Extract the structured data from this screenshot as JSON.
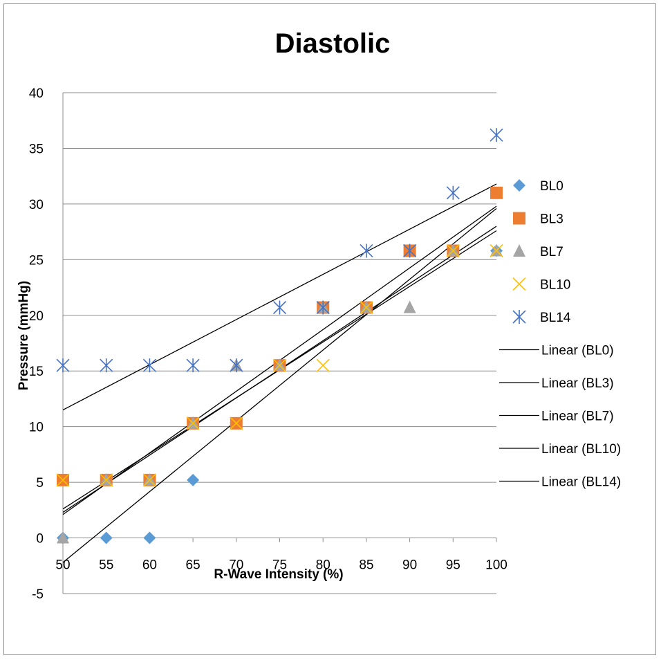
{
  "chart_data": {
    "type": "scatter",
    "title": "Diastolic",
    "xlabel": "R-Wave Intensity (%)",
    "ylabel": "Pressure (mmHg)",
    "xlim": [
      50,
      100
    ],
    "ylim": [
      -5,
      40
    ],
    "x_ticks": [
      "50",
      "55",
      "60",
      "65",
      "70",
      "75",
      "80",
      "85",
      "90",
      "95",
      "100"
    ],
    "y_ticks": [
      "-5",
      "0",
      "5",
      "10",
      "15",
      "20",
      "25",
      "30",
      "35",
      "40"
    ],
    "grid": "horizontal",
    "legend_position": "right",
    "series": [
      {
        "name": "BL0",
        "marker": "diamond",
        "color": "#5b9bd5",
        "points": [
          [
            50,
            0
          ],
          [
            55,
            0
          ],
          [
            60,
            0
          ],
          [
            65,
            5.2
          ],
          [
            70,
            10.3
          ],
          [
            75,
            15.5
          ],
          [
            80,
            20.7
          ],
          [
            85,
            20.7
          ],
          [
            90,
            25.8
          ],
          [
            95,
            25.8
          ],
          [
            100,
            25.8
          ]
        ]
      },
      {
        "name": "BL3",
        "marker": "square",
        "color": "#ed7d31",
        "points": [
          [
            50,
            5.2
          ],
          [
            55,
            5.2
          ],
          [
            60,
            5.2
          ],
          [
            65,
            10.3
          ],
          [
            70,
            10.3
          ],
          [
            75,
            15.5
          ],
          [
            80,
            20.7
          ],
          [
            85,
            20.7
          ],
          [
            90,
            25.8
          ],
          [
            95,
            25.8
          ],
          [
            100,
            31
          ]
        ]
      },
      {
        "name": "BL7",
        "marker": "triangle",
        "color": "#a5a5a5",
        "points": [
          [
            50,
            0
          ],
          [
            55,
            5.2
          ],
          [
            60,
            5.2
          ],
          [
            65,
            10.3
          ],
          [
            70,
            15.5
          ],
          [
            75,
            15.5
          ],
          [
            80,
            20.7
          ],
          [
            85,
            20.7
          ],
          [
            90,
            20.7
          ],
          [
            95,
            25.8
          ],
          [
            100,
            25.8
          ]
        ]
      },
      {
        "name": "BL10",
        "marker": "x",
        "color": "#ffc000",
        "points": [
          [
            50,
            5.2
          ],
          [
            55,
            5.2
          ],
          [
            60,
            5.2
          ],
          [
            65,
            10.3
          ],
          [
            70,
            10.3
          ],
          [
            75,
            15.5
          ],
          [
            80,
            15.5
          ],
          [
            85,
            20.7
          ],
          [
            90,
            25.8
          ],
          [
            95,
            25.8
          ],
          [
            100,
            25.8
          ]
        ]
      },
      {
        "name": "BL14",
        "marker": "star",
        "color": "#4472c4",
        "points": [
          [
            50,
            15.5
          ],
          [
            55,
            15.5
          ],
          [
            60,
            15.5
          ],
          [
            65,
            15.5
          ],
          [
            70,
            15.5
          ],
          [
            75,
            20.7
          ],
          [
            80,
            20.7
          ],
          [
            85,
            25.8
          ],
          [
            90,
            25.8
          ],
          [
            95,
            31
          ],
          [
            100,
            36.2
          ]
        ]
      }
    ],
    "trendlines": [
      {
        "name": "Linear (BL0)",
        "color": "#000000",
        "from": [
          50,
          -2.2
        ],
        "to": [
          100,
          29.6
        ]
      },
      {
        "name": "Linear (BL3)",
        "color": "#000000",
        "from": [
          50,
          2.1
        ],
        "to": [
          100,
          29.8
        ]
      },
      {
        "name": "Linear (BL7)",
        "color": "#000000",
        "from": [
          50,
          2.6
        ],
        "to": [
          100,
          27.6
        ]
      },
      {
        "name": "Linear (BL10)",
        "color": "#000000",
        "from": [
          50,
          2.3
        ],
        "to": [
          100,
          28
        ]
      },
      {
        "name": "Linear (BL14)",
        "color": "#000000",
        "from": [
          50,
          11.5
        ],
        "to": [
          100,
          31.8
        ]
      }
    ]
  }
}
